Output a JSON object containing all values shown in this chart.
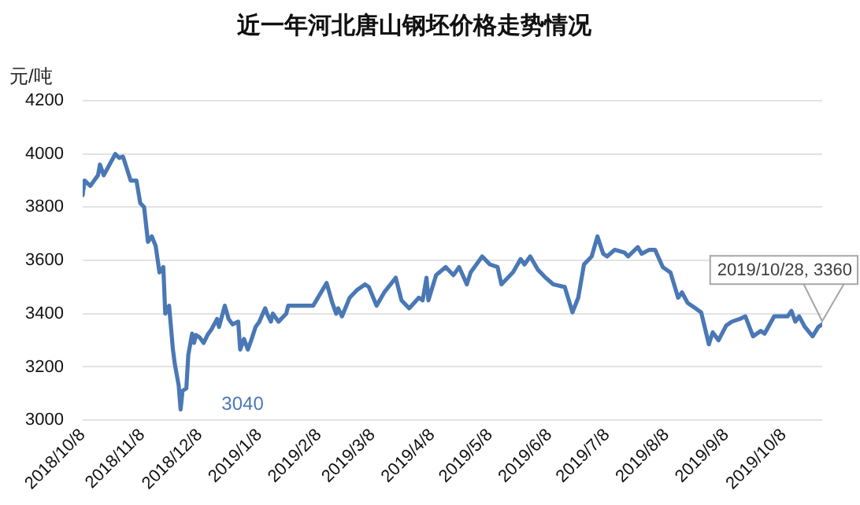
{
  "chart_data": {
    "type": "line",
    "title": "近一年河北唐山钢坯价格走势情况",
    "ylabel": "元/吨",
    "x": [
      "2018-10-08",
      "2018-10-09",
      "2018-10-12",
      "2018-10-16",
      "2018-10-17",
      "2018-10-19",
      "2018-10-25",
      "2018-10-27",
      "2018-10-29",
      "2018-11-02",
      "2018-11-05",
      "2018-11-07",
      "2018-11-09",
      "2018-11-11",
      "2018-11-13",
      "2018-11-15",
      "2018-11-17",
      "2018-11-19",
      "2018-11-20",
      "2018-11-22",
      "2018-11-24",
      "2018-11-25",
      "2018-11-27",
      "2018-11-28",
      "2018-11-29",
      "2018-12-01",
      "2018-12-02",
      "2018-12-04",
      "2018-12-05",
      "2018-12-06",
      "2018-12-08",
      "2018-12-10",
      "2018-12-12",
      "2018-12-14",
      "2018-12-17",
      "2018-12-18",
      "2018-12-21",
      "2018-12-23",
      "2018-12-25",
      "2018-12-28",
      "2018-12-29",
      "2018-12-31",
      "2019-01-02",
      "2019-01-04",
      "2019-01-06",
      "2019-01-08",
      "2019-01-11",
      "2019-01-12",
      "2019-01-14",
      "2019-01-15",
      "2019-01-18",
      "2019-01-22",
      "2019-01-23",
      "2019-02-05",
      "2019-02-12",
      "2019-02-15",
      "2019-02-17",
      "2019-02-18",
      "2019-02-20",
      "2019-02-24",
      "2019-02-28",
      "2019-03-04",
      "2019-03-06",
      "2019-03-10",
      "2019-03-14",
      "2019-03-20",
      "2019-03-23",
      "2019-03-27",
      "2019-04-01",
      "2019-04-03",
      "2019-04-05",
      "2019-04-06",
      "2019-04-10",
      "2019-04-15",
      "2019-04-19",
      "2019-04-22",
      "2019-04-26",
      "2019-04-28",
      "2019-05-04",
      "2019-05-08",
      "2019-05-12",
      "2019-05-14",
      "2019-05-20",
      "2019-05-24",
      "2019-05-26",
      "2019-05-29",
      "2019-06-02",
      "2019-06-06",
      "2019-06-10",
      "2019-06-16",
      "2019-06-20",
      "2019-06-23",
      "2019-06-26",
      "2019-06-30",
      "2019-07-03",
      "2019-07-06",
      "2019-07-08",
      "2019-07-12",
      "2019-07-17",
      "2019-07-19",
      "2019-07-24",
      "2019-07-26",
      "2019-07-30",
      "2019-08-02",
      "2019-08-06",
      "2019-08-10",
      "2019-08-14",
      "2019-08-16",
      "2019-08-19",
      "2019-08-23",
      "2019-08-26",
      "2019-08-30",
      "2019-09-01",
      "2019-09-04",
      "2019-09-08",
      "2019-09-11",
      "2019-09-15",
      "2019-09-18",
      "2019-09-22",
      "2019-09-26",
      "2019-09-28",
      "2019-10-03",
      "2019-10-10",
      "2019-10-12",
      "2019-10-14",
      "2019-10-16",
      "2019-10-19",
      "2019-10-23",
      "2019-10-26",
      "2019-10-28"
    ],
    "series": [
      {
        "color": "#4a78b5",
        "values": [
          3845,
          3900,
          3880,
          3920,
          3960,
          3920,
          4000,
          3985,
          3990,
          3900,
          3900,
          3815,
          3800,
          3670,
          3690,
          3655,
          3555,
          3575,
          3400,
          3430,
          3265,
          3210,
          3130,
          3040,
          3110,
          3120,
          3245,
          3325,
          3290,
          3320,
          3310,
          3290,
          3320,
          3340,
          3380,
          3350,
          3430,
          3380,
          3360,
          3370,
          3265,
          3305,
          3265,
          3305,
          3350,
          3370,
          3420,
          3400,
          3370,
          3400,
          3370,
          3400,
          3430,
          3430,
          3515,
          3440,
          3400,
          3420,
          3390,
          3460,
          3490,
          3510,
          3500,
          3430,
          3480,
          3535,
          3450,
          3420,
          3460,
          3450,
          3535,
          3450,
          3545,
          3575,
          3545,
          3575,
          3510,
          3555,
          3615,
          3585,
          3575,
          3510,
          3555,
          3605,
          3585,
          3615,
          3565,
          3535,
          3510,
          3500,
          3405,
          3460,
          3585,
          3615,
          3690,
          3625,
          3615,
          3640,
          3630,
          3615,
          3650,
          3625,
          3640,
          3640,
          3575,
          3555,
          3460,
          3480,
          3440,
          3420,
          3405,
          3285,
          3330,
          3300,
          3355,
          3370,
          3380,
          3390,
          3315,
          3335,
          3325,
          3390,
          3390,
          3410,
          3370,
          3390,
          3350,
          3315,
          3350,
          3360
        ]
      }
    ],
    "xlim": [
      "2018-10-08",
      "2019-10-28"
    ],
    "xticks": [
      {
        "value": "2018-10-08",
        "label": "2018/10/8"
      },
      {
        "value": "2018-11-08",
        "label": "2018/11/8"
      },
      {
        "value": "2018-12-08",
        "label": "2018/12/8"
      },
      {
        "value": "2019-01-08",
        "label": "2019/1/8"
      },
      {
        "value": "2019-02-08",
        "label": "2019/2/8"
      },
      {
        "value": "2019-03-08",
        "label": "2019/3/8"
      },
      {
        "value": "2019-04-08",
        "label": "2019/4/8"
      },
      {
        "value": "2019-05-08",
        "label": "2019/5/8"
      },
      {
        "value": "2019-06-08",
        "label": "2019/6/8"
      },
      {
        "value": "2019-07-08",
        "label": "2019/7/8"
      },
      {
        "value": "2019-08-08",
        "label": "2019/8/8"
      },
      {
        "value": "2019-09-08",
        "label": "2019/9/8"
      },
      {
        "value": "2019-10-08",
        "label": "2019/10/8"
      }
    ],
    "ylim": [
      3000,
      4200
    ],
    "yticks": [
      3000,
      3200,
      3400,
      3600,
      3800,
      4000,
      4200
    ],
    "grid": "y",
    "legend": false,
    "marker": "none",
    "line_style": "solid",
    "annotations": [
      {
        "text": "3040",
        "x": "2018-11-28",
        "y": 3040
      },
      {
        "text": "2019/10/28, 3360",
        "x": "2019-10-28",
        "y": 3360
      }
    ]
  }
}
